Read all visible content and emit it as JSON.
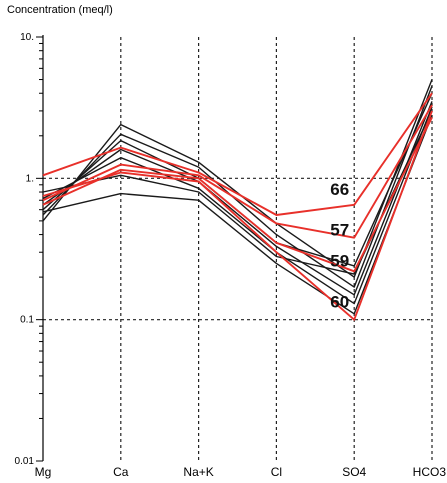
{
  "chart_data": {
    "type": "line",
    "title": "",
    "ylabel": "Concentration (meq/l)",
    "xlabel": "",
    "yscale": "log",
    "ylim": [
      0.01,
      10
    ],
    "ytick_labels": [
      "0.01",
      "0.1",
      "1.",
      "10."
    ],
    "ytick_values": [
      0.01,
      0.1,
      1,
      10
    ],
    "categories": [
      "Mg",
      "Ca",
      "Na+K",
      "Cl",
      "SO4",
      "HCO3"
    ],
    "grid": "dashed vertical at each category; dashed horizontal at 0.1 and 1",
    "series_colors": {
      "black": "#1a1a1a",
      "red": "#e8302a"
    },
    "series": [
      {
        "color": "black",
        "values": [
          0.5,
          2.4,
          1.3,
          0.48,
          0.2,
          5.0
        ]
      },
      {
        "color": "black",
        "values": [
          0.55,
          2.05,
          1.2,
          0.4,
          0.17,
          4.5
        ]
      },
      {
        "color": "black",
        "values": [
          0.6,
          1.85,
          1.0,
          0.35,
          0.24,
          4.0
        ]
      },
      {
        "color": "black",
        "values": [
          0.65,
          1.6,
          0.95,
          0.33,
          0.15,
          3.5
        ]
      },
      {
        "color": "black",
        "values": [
          0.72,
          1.4,
          0.85,
          0.3,
          0.13,
          3.2
        ]
      },
      {
        "color": "black",
        "values": [
          0.8,
          1.05,
          0.8,
          0.28,
          0.21,
          3.0
        ]
      },
      {
        "color": "black",
        "values": [
          0.58,
          0.78,
          0.7,
          0.25,
          0.11,
          2.8
        ]
      },
      {
        "color": "red",
        "label": "66",
        "values": [
          1.05,
          1.65,
          1.1,
          0.55,
          0.65,
          4.0
        ]
      },
      {
        "color": "red",
        "label": "57",
        "values": [
          0.7,
          1.25,
          1.05,
          0.48,
          0.38,
          3.3
        ]
      },
      {
        "color": "red",
        "label": "59",
        "values": [
          0.65,
          1.15,
          1.0,
          0.35,
          0.22,
          2.7
        ]
      },
      {
        "color": "red",
        "label": "60",
        "values": [
          0.75,
          1.1,
          0.95,
          0.3,
          0.1,
          3.0
        ]
      }
    ],
    "annotations": [
      "66",
      "57",
      "59",
      "60"
    ]
  }
}
